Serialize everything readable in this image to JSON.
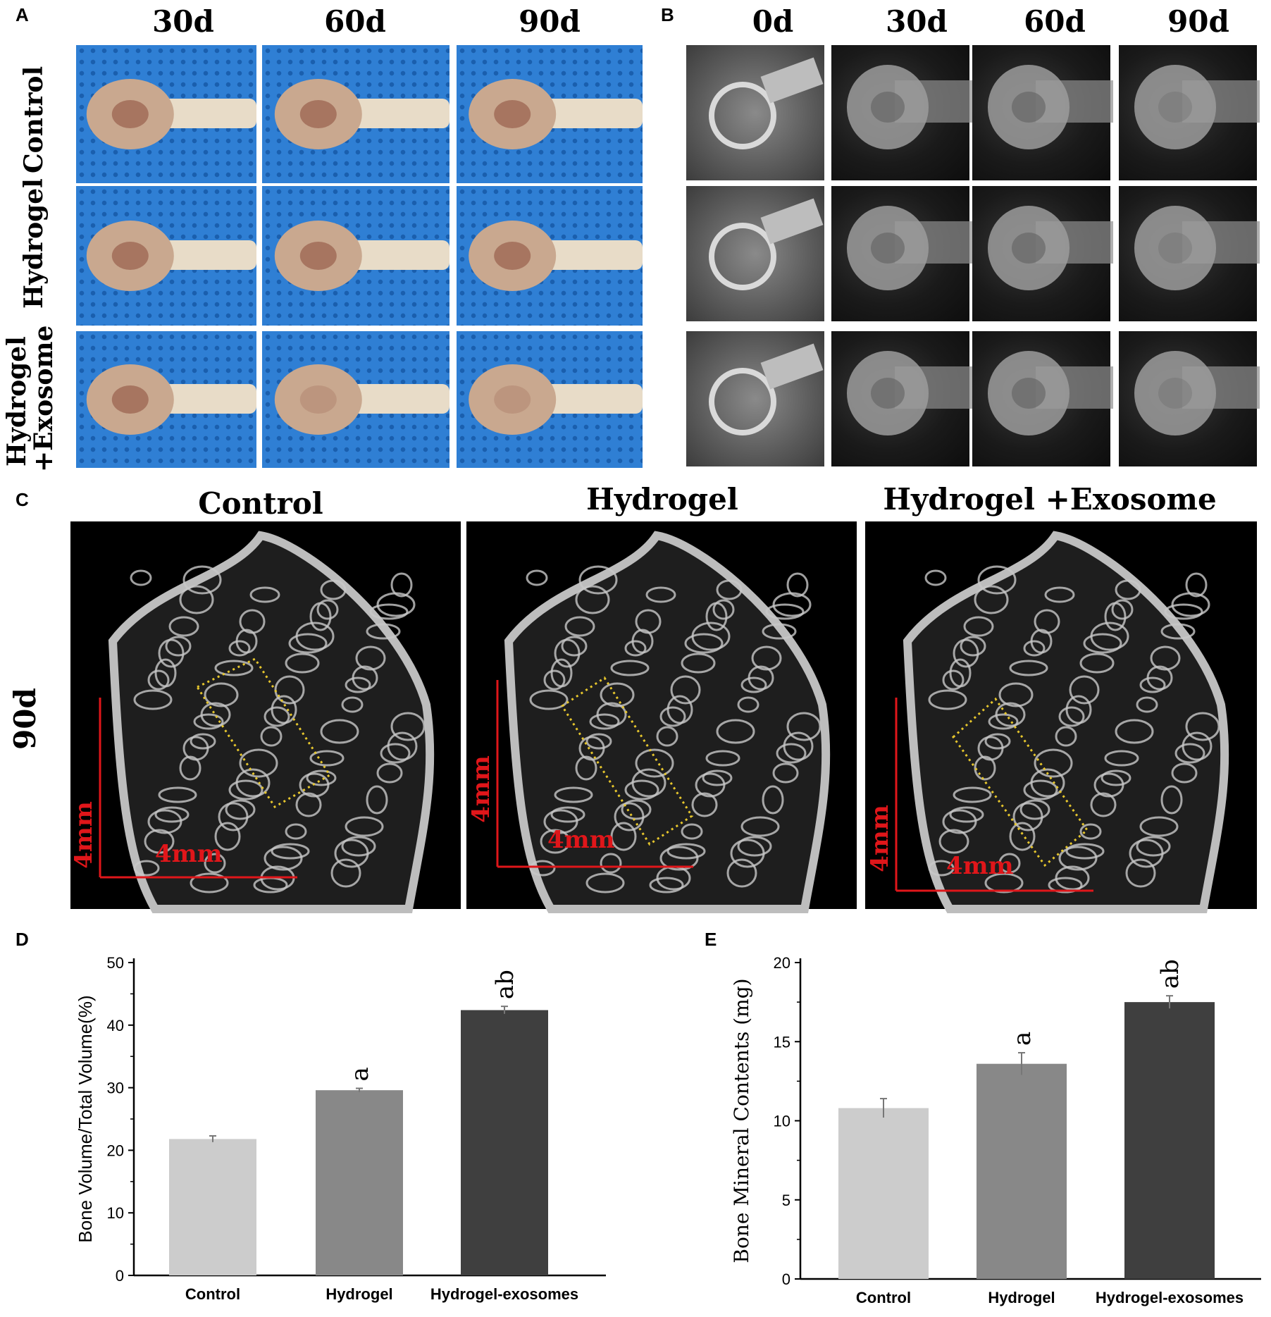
{
  "panels": {
    "A": {
      "label": "A",
      "columns": [
        "30d",
        "60d",
        "90d"
      ],
      "rows": [
        [
          "Control"
        ],
        [
          "Hydrogel"
        ],
        [
          "Hydrogel",
          "+Exosome"
        ]
      ]
    },
    "B": {
      "label": "B",
      "columns": [
        "0d",
        "30d",
        "60d",
        "90d"
      ]
    },
    "C": {
      "label": "C",
      "columns": [
        "Control",
        "Hydrogel",
        "Hydrogel +Exosome"
      ],
      "row_label": "90d",
      "scale_label": "4mm"
    },
    "D": {
      "label": "D"
    },
    "E": {
      "label": "E"
    }
  },
  "colors": {
    "photo_bg": "#2f7fd4",
    "bone": "#c9a88f",
    "scale_bar": "#e0161a",
    "roi_box": "#e6c62d",
    "bar_control": "#cccccc",
    "bar_hydrogel": "#888888",
    "bar_hydrogel_exosomes": "#3f3f3f"
  },
  "chart_data": [
    {
      "type": "bar",
      "panel": "D",
      "categories": [
        "Control",
        "Hydrogel",
        "Hydrogel-exosomes"
      ],
      "values": [
        21.8,
        29.6,
        42.4
      ],
      "errors": [
        0.5,
        0.3,
        0.6
      ],
      "annotations": [
        "",
        "a",
        "ab"
      ],
      "title": "",
      "xlabel": "",
      "ylabel": "Bone Volume/Total Volume(%)",
      "ylim": [
        0,
        50
      ],
      "yticks": [
        0,
        10,
        20,
        30,
        40,
        50
      ]
    },
    {
      "type": "bar",
      "panel": "E",
      "categories": [
        "Control",
        "Hydrogel",
        "Hydrogel-exosomes"
      ],
      "values": [
        10.8,
        13.6,
        17.5
      ],
      "errors": [
        0.6,
        0.7,
        0.4
      ],
      "annotations": [
        "",
        "a",
        "ab"
      ],
      "title": "",
      "xlabel": "",
      "ylabel": "Bone Mineral Contents (mg)",
      "ylim": [
        0,
        20
      ],
      "yticks": [
        0,
        5,
        10,
        15,
        20
      ]
    }
  ]
}
